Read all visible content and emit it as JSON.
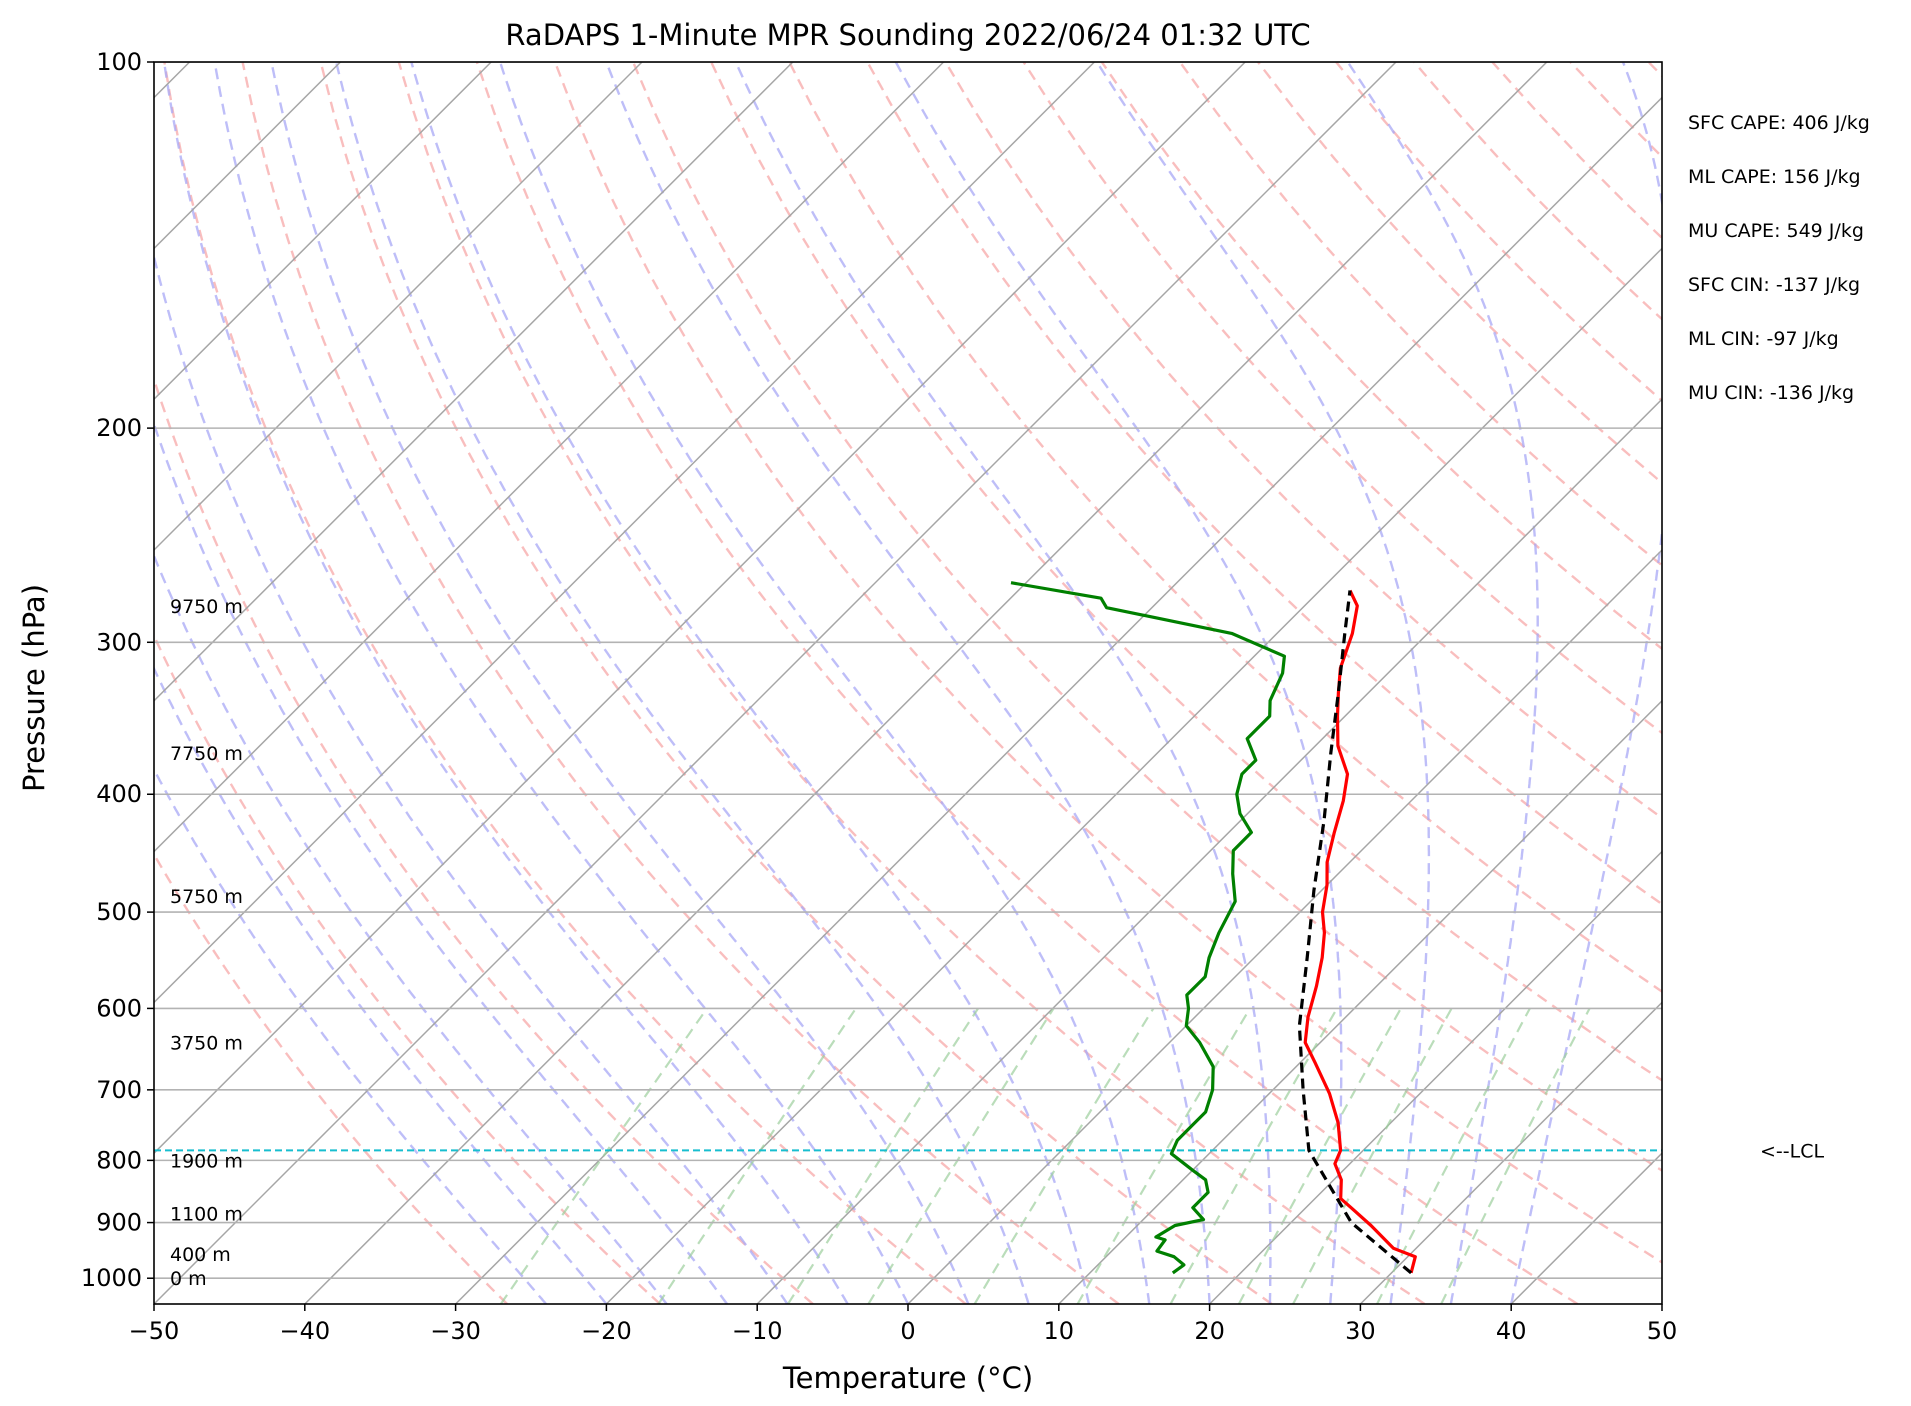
{
  "chart_data": {
    "type": "line",
    "subtype": "skew-t log-p",
    "title": "RaDAPS 1-Minute MPR Sounding 2022/06/24 01:32 UTC",
    "xlabel": "Temperature (°C)",
    "ylabel": "Pressure (hPa)",
    "xlim": [
      -50,
      50
    ],
    "ylim": [
      1050,
      100
    ],
    "y_scale": "log",
    "grid": true,
    "x_ticks": [
      "−50",
      "−40",
      "−30",
      "−20",
      "−10",
      "0",
      "10",
      "20",
      "30",
      "40",
      "50"
    ],
    "y_ticks": [
      "100",
      "200",
      "300",
      "400",
      "500",
      "600",
      "700",
      "800",
      "900",
      "1000"
    ],
    "height_labels": [
      {
        "label": "0 m",
        "pressure": 1000
      },
      {
        "label": "400 m",
        "pressure": 955
      },
      {
        "label": "1100 m",
        "pressure": 885
      },
      {
        "label": "1900 m",
        "pressure": 800
      },
      {
        "label": "3750 m",
        "pressure": 640
      },
      {
        "label": "5750 m",
        "pressure": 485
      },
      {
        "label": "7750 m",
        "pressure": 370
      },
      {
        "label": "9750 m",
        "pressure": 280
      }
    ],
    "stats": [
      "SFC CAPE: 406 J/kg",
      "ML CAPE: 156 J/kg",
      "MU CAPE: 549 J/kg",
      "SFC CIN: -137 J/kg",
      "ML CIN: -97 J/kg",
      "MU CIN: -136 J/kg"
    ],
    "lcl": {
      "label": "<--LCL",
      "pressure": 785
    },
    "series": [
      {
        "role": "temperature",
        "color": "#ff0000",
        "points": [
          [
            31.3,
            990
          ],
          [
            30.5,
            960
          ],
          [
            28.5,
            945
          ],
          [
            25.5,
            905
          ],
          [
            23,
            875
          ],
          [
            21.7,
            860
          ],
          [
            20.5,
            830
          ],
          [
            19,
            805
          ],
          [
            18.5,
            785
          ],
          [
            16.5,
            745
          ],
          [
            14,
            705
          ],
          [
            11,
            665
          ],
          [
            9,
            640
          ],
          [
            7.5,
            610
          ],
          [
            6,
            575
          ],
          [
            4.5,
            545
          ],
          [
            3,
            520
          ],
          [
            1.5,
            500
          ],
          [
            0,
            475
          ],
          [
            -1.5,
            455
          ],
          [
            -3,
            430
          ],
          [
            -4.5,
            405
          ],
          [
            -6,
            385
          ],
          [
            -8.5,
            365
          ],
          [
            -10.5,
            345
          ],
          [
            -12,
            330
          ],
          [
            -13.5,
            315
          ],
          [
            -15,
            295
          ],
          [
            -16.5,
            280
          ],
          [
            -18,
            272
          ]
        ]
      },
      {
        "role": "dewpoint",
        "color": "#008000",
        "points": [
          [
            15.5,
            990
          ],
          [
            15.7,
            975
          ],
          [
            14.5,
            960
          ],
          [
            13,
            950
          ],
          [
            12.8,
            930
          ],
          [
            12,
            925
          ],
          [
            12.5,
            905
          ],
          [
            14,
            895
          ],
          [
            12.5,
            875
          ],
          [
            12.5,
            850
          ],
          [
            11.5,
            830
          ],
          [
            10,
            815
          ],
          [
            7.5,
            790
          ],
          [
            7,
            770
          ],
          [
            7,
            750
          ],
          [
            7,
            730
          ],
          [
            6,
            700
          ],
          [
            4.5,
            670
          ],
          [
            2,
            640
          ],
          [
            0,
            620
          ],
          [
            -1,
            600
          ],
          [
            -2,
            585
          ],
          [
            -2,
            565
          ],
          [
            -3,
            545
          ],
          [
            -4,
            520
          ],
          [
            -5,
            490
          ],
          [
            -7,
            465
          ],
          [
            -8.5,
            445
          ],
          [
            -8.5,
            430
          ],
          [
            -10.5,
            415
          ],
          [
            -12,
            400
          ],
          [
            -13,
            385
          ],
          [
            -13,
            375
          ],
          [
            -15,
            360
          ],
          [
            -15,
            345
          ],
          [
            -16,
            335
          ],
          [
            -17,
            318
          ],
          [
            -18,
            308
          ],
          [
            -23,
            295
          ],
          [
            -33,
            281
          ],
          [
            -34,
            276
          ],
          [
            -41,
            268
          ]
        ]
      },
      {
        "role": "parcel",
        "color": "#000000",
        "points": [
          [
            31.3,
            990
          ],
          [
            24,
            900
          ],
          [
            16.4,
            785
          ],
          [
            12,
            700
          ],
          [
            7.5,
            620
          ],
          [
            3.5,
            545
          ],
          [
            -0.5,
            480
          ],
          [
            -4.5,
            420
          ],
          [
            -8.5,
            370
          ],
          [
            -12,
            330
          ],
          [
            -15.5,
            295
          ],
          [
            -18,
            272
          ]
        ]
      }
    ]
  }
}
